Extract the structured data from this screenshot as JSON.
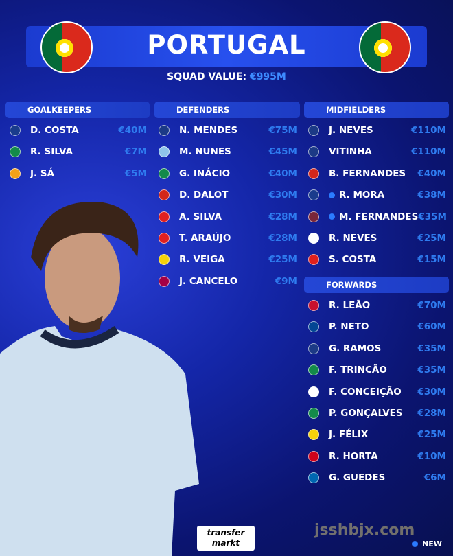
{
  "header": {
    "title": "PORTUGAL",
    "squad_value_label": "SQUAD VALUE:",
    "squad_value": "€995M"
  },
  "colors": {
    "accent": "#2f7cf0",
    "new_dot": "#2b7bff",
    "header": "#2750ee"
  },
  "sections": {
    "goalkeepers": {
      "label": "GOALKEEPERS",
      "players": [
        {
          "name": "D. COSTA",
          "value": "€40M",
          "club_icon": "porto-crest-icon",
          "color": "#1a3c8c"
        },
        {
          "name": "R. SILVA",
          "value": "€7M",
          "club_icon": "sporting-crest-icon",
          "color": "#138a4a"
        },
        {
          "name": "J. SÁ",
          "value": "€5M",
          "club_icon": "wolves-crest-icon",
          "color": "#f4a11a"
        }
      ]
    },
    "defenders": {
      "label": "DEFENDERS",
      "players": [
        {
          "name": "N. MENDES",
          "value": "€75M",
          "club_icon": "psg-crest-icon",
          "color": "#1c3a86"
        },
        {
          "name": "M. NUNES",
          "value": "€45M",
          "club_icon": "man-city-crest-icon",
          "color": "#8fc4ea"
        },
        {
          "name": "G. INÁCIO",
          "value": "€40M",
          "club_icon": "sporting-crest-icon",
          "color": "#138a4a"
        },
        {
          "name": "D. DALOT",
          "value": "€30M",
          "club_icon": "man-united-crest-icon",
          "color": "#d4271b"
        },
        {
          "name": "A.  SILVA",
          "value": "€28M",
          "club_icon": "benfica-crest-icon",
          "color": "#e02020"
        },
        {
          "name": "T. ARAÚJO",
          "value": "€28M",
          "club_icon": "benfica-crest-icon",
          "color": "#e02020"
        },
        {
          "name": "R. VEIGA",
          "value": "€25M",
          "club_icon": "villarreal-crest-icon",
          "color": "#f5d20a"
        },
        {
          "name": "J. CANCELO",
          "value": "€9M",
          "club_icon": "barcelona-crest-icon",
          "color": "#a50044"
        }
      ]
    },
    "midfielders": {
      "label": "MIDFIELDERS",
      "players": [
        {
          "name": "J. NEVES",
          "value": "€110M",
          "club_icon": "psg-crest-icon",
          "color": "#1c3a86"
        },
        {
          "name": "VITINHA",
          "value": "€110M",
          "club_icon": "psg-crest-icon",
          "color": "#1c3a86"
        },
        {
          "name": "B. FERNANDES",
          "value": "€40M",
          "club_icon": "man-united-crest-icon",
          "color": "#d4271b"
        },
        {
          "name": "R. MORA",
          "value": "€38M",
          "club_icon": "porto-crest-icon",
          "color": "#1a3c8c",
          "new": true
        },
        {
          "name": "M. FERNANDES",
          "value": "€35M",
          "club_icon": "west-ham-crest-icon",
          "color": "#7a263a",
          "new": true
        },
        {
          "name": "R. NEVES",
          "value": "€25M",
          "club_icon": "al-hilal-crest-icon",
          "color": "#ffffff"
        },
        {
          "name": "S. COSTA",
          "value": "€15M",
          "club_icon": "mallorca-crest-icon",
          "color": "#e0201c"
        }
      ]
    },
    "forwards": {
      "label": "FORWARDS",
      "players": [
        {
          "name": "R. LEÃO",
          "value": "€70M",
          "club_icon": "ac-milan-crest-icon",
          "color": "#c8102e"
        },
        {
          "name": "P. NETO",
          "value": "€60M",
          "club_icon": "chelsea-crest-icon",
          "color": "#034694"
        },
        {
          "name": "G. RAMOS",
          "value": "€35M",
          "club_icon": "psg-crest-icon",
          "color": "#1c3a86"
        },
        {
          "name": "F. TRINCÃO",
          "value": "€35M",
          "club_icon": "sporting-crest-icon",
          "color": "#138a4a"
        },
        {
          "name": "F. CONCEIÇÃO",
          "value": "€30M",
          "club_icon": "juventus-crest-icon",
          "color": "#ffffff"
        },
        {
          "name": "P. GONÇALVES",
          "value": "€28M",
          "club_icon": "sporting-crest-icon",
          "color": "#138a4a"
        },
        {
          "name": "J. FÉLIX",
          "value": "€25M",
          "club_icon": "al-nassr-crest-icon",
          "color": "#f5d20a"
        },
        {
          "name": "R. HORTA",
          "value": "€10M",
          "club_icon": "braga-crest-icon",
          "color": "#d0021b"
        },
        {
          "name": "G. GUEDES",
          "value": "€6M",
          "club_icon": "real-sociedad-crest-icon",
          "color": "#0067b1"
        }
      ]
    }
  },
  "legend": {
    "new_label": "NEW"
  },
  "branding": {
    "logo": "transfer markt",
    "watermark": "jsshbjx.com"
  }
}
